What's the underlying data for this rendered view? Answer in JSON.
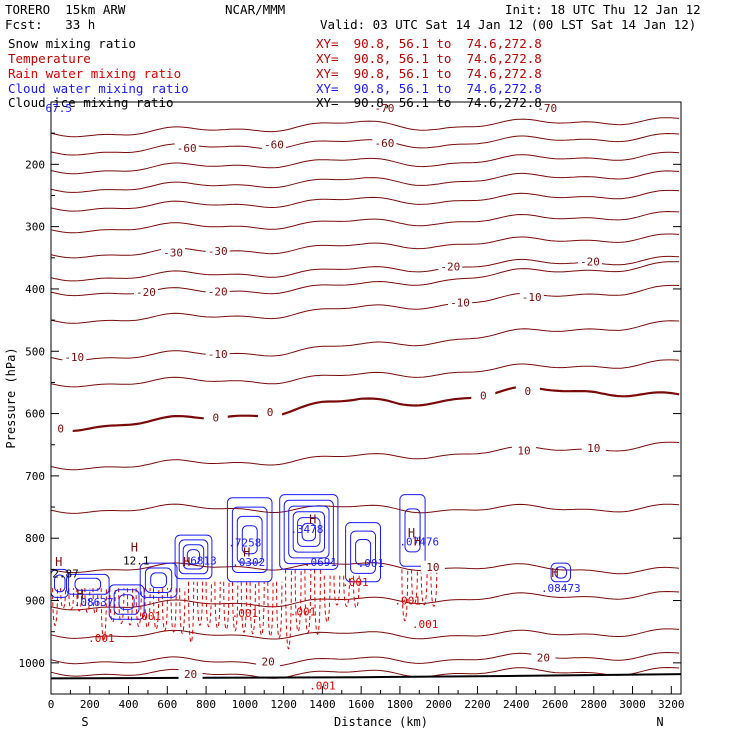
{
  "header": {
    "model": "TORERO  15km ARW",
    "center": "NCAR/MMM",
    "init": "Init: 18 UTC Thu 12 Jan 12",
    "fcst": "Fcst:   33 h",
    "valid": "Valid: 03 UTC Sat 14 Jan 12 (00 LST Sat 14 Jan 12)"
  },
  "fields": [
    {
      "name": "Snow mixing ratio",
      "xy": "XY=  90.8, 56.1 to  74.6,272.8",
      "color": "#000000",
      "xy_color": "#c00000"
    },
    {
      "name": "Temperature",
      "xy": "XY=  90.8, 56.1 to  74.6,272.8",
      "color": "#c00000",
      "xy_color": "#c00000"
    },
    {
      "name": "Rain water mixing ratio",
      "xy": "XY=  90.8, 56.1 to  74.6,272.8",
      "color": "#e00000",
      "xy_color": "#c00000"
    },
    {
      "name": "Cloud water mixing ratio",
      "xy": "XY=  90.8, 56.1 to  74.6,272.8",
      "color": "#1a1aff",
      "xy_color": "#1a1aff"
    },
    {
      "name": "Cloud ice mixing ratio",
      "xy": "XY=  90.8, 56.1 to  74.6,272.8",
      "color": "#000000",
      "xy_color": "#000000"
    }
  ],
  "colors": {
    "temperature": "#7a0a0a",
    "rain": "#e00000",
    "cloud_water": "#1a1aff",
    "terrain": "#000000"
  },
  "chart_data": {
    "type": "line",
    "xlabel": "Distance (km)",
    "ylabel": "Pressure (hPa)",
    "xlim": [
      0,
      3250
    ],
    "ylim": [
      1050,
      100
    ],
    "x_ticks": [
      0,
      200,
      400,
      600,
      800,
      1000,
      1200,
      1400,
      1600,
      1800,
      2000,
      2200,
      2400,
      2600,
      2800,
      3000,
      3200
    ],
    "y_ticks": [
      200,
      300,
      400,
      500,
      600,
      700,
      800,
      900,
      1000
    ],
    "x_end_labels": {
      "left": "S",
      "right": "N"
    },
    "grid": false,
    "temperature_isotherms": [
      {
        "x": [
          0,
          400,
          800,
          1200,
          1600,
          2000,
          2400,
          2800,
          3250
        ],
        "p": [
          150,
          150,
          145,
          140,
          135,
          140,
          135,
          130,
          130
        ]
      },
      {
        "x": [
          0,
          400,
          800,
          1200,
          1600,
          2000,
          2400,
          2800,
          3250
        ],
        "p": [
          180,
          178,
          172,
          168,
          165,
          168,
          162,
          158,
          155
        ],
        "label": "-60",
        "label_x": [
          700,
          1150,
          1720
        ]
      },
      {
        "x": [
          0,
          400,
          800,
          1200,
          1600,
          2000,
          2400,
          2800,
          3250
        ],
        "p": [
          210,
          208,
          203,
          198,
          195,
          198,
          192,
          188,
          185
        ]
      },
      {
        "x": [
          0,
          400,
          800,
          1200,
          1600,
          2000,
          2400,
          2800,
          3250
        ],
        "p": [
          240,
          238,
          234,
          230,
          226,
          228,
          222,
          218,
          215
        ]
      },
      {
        "x": [
          0,
          400,
          800,
          1200,
          1600,
          2000,
          2400,
          2800,
          3250
        ],
        "p": [
          270,
          268,
          265,
          262,
          258,
          258,
          254,
          250,
          246
        ]
      },
      {
        "x": [
          0,
          400,
          800,
          1200,
          1600,
          2000,
          2400,
          2800,
          3250
        ],
        "p": [
          305,
          302,
          300,
          297,
          293,
          292,
          288,
          284,
          280
        ]
      },
      {
        "x": [
          0,
          400,
          800,
          1200,
          1600,
          2000,
          2400,
          2800,
          3250
        ],
        "p": [
          345,
          343,
          340,
          336,
          332,
          328,
          324,
          320,
          316
        ],
        "label": "-30",
        "label_x": [
          630,
          860
        ]
      },
      {
        "x": [
          0,
          400,
          800,
          1200,
          1600,
          2000,
          2400,
          2800,
          3250
        ],
        "p": [
          382,
          380,
          377,
          374,
          370,
          365,
          360,
          356,
          352
        ],
        "label": "-20",
        "label_x": [
          2060,
          2780
        ]
      },
      {
        "x": [
          0,
          400,
          800,
          1200,
          1600,
          2000,
          2400,
          2800,
          3250
        ],
        "p": [
          405,
          405,
          405,
          400,
          395,
          385,
          375,
          368,
          360
        ],
        "label": "-20",
        "label_x": [
          490,
          860
        ]
      },
      {
        "x": [
          0,
          400,
          800,
          1200,
          1600,
          2000,
          2400,
          2800,
          3250
        ],
        "p": [
          450,
          448,
          445,
          440,
          432,
          424,
          415,
          406,
          398
        ],
        "label": "-10",
        "label_x": [
          2110,
          2480
        ]
      },
      {
        "x": [
          0,
          400,
          800,
          1200,
          1600,
          2000,
          2400,
          2800,
          3250
        ],
        "p": [
          510,
          508,
          505,
          500,
          492,
          482,
          472,
          462,
          455
        ],
        "label": "-10",
        "label_x": [
          120,
          860
        ]
      },
      {
        "x": [
          0,
          400,
          800,
          1200,
          1600,
          2000,
          2400,
          2800,
          3250
        ],
        "p": [
          552,
          550,
          548,
          545,
          540,
          534,
          528,
          522,
          518
        ]
      },
      {
        "x": [
          0,
          200,
          400,
          600,
          800,
          1000,
          1200,
          1400,
          1600,
          1800,
          2000,
          2200,
          2400,
          2600,
          2800,
          3000,
          3250
        ],
        "p": [
          625,
          620,
          615,
          612,
          608,
          602,
          595,
          585,
          580,
          583,
          578,
          572,
          565,
          562,
          563,
          567,
          573
        ],
        "label": "0",
        "label_x": [
          50,
          850,
          1130,
          2230,
          2460
        ],
        "bold": true
      },
      {
        "x": [
          0,
          400,
          800,
          1200,
          1600,
          2000,
          2400,
          2800,
          3250
        ],
        "p": [
          685,
          683,
          680,
          675,
          670,
          665,
          660,
          655,
          650
        ],
        "label": "10",
        "label_x": [
          2440,
          2800
        ]
      },
      {
        "x": [
          0,
          400,
          800,
          1200,
          1600,
          2000,
          2400,
          2800,
          3250
        ],
        "p": [
          755,
          753,
          752,
          752,
          752,
          753,
          753,
          752,
          750
        ]
      },
      {
        "x": [
          0,
          400,
          800,
          1200,
          1600,
          2000,
          2400,
          2800,
          3250
        ],
        "p": [
          850,
          848,
          846,
          844,
          844,
          846,
          848,
          850,
          852
        ],
        "label": "10",
        "label_x": [
          1970
        ]
      },
      {
        "x": [
          0,
          400,
          800,
          1200,
          1600,
          2000,
          2400,
          2800,
          3250
        ],
        "p": [
          910,
          908,
          905,
          903,
          900,
          898,
          895,
          892,
          890
        ]
      },
      {
        "x": [
          0,
          400,
          800,
          1200,
          1600,
          2000,
          2400,
          2800,
          3250
        ],
        "p": [
          955,
          955,
          955,
          955,
          955,
          955,
          955,
          952,
          950
        ]
      },
      {
        "x": [
          0,
          400,
          800,
          1200,
          1600,
          2000,
          2400,
          2800,
          3250
        ],
        "p": [
          995,
          997,
          998,
          998,
          996,
          994,
          992,
          990,
          988
        ],
        "label": "20",
        "label_x": [
          1120,
          2540
        ]
      },
      {
        "x": [
          0,
          400,
          800,
          1200,
          1600,
          2000,
          2400,
          2800,
          3250
        ],
        "p": [
          1015,
          1017,
          1018,
          1018,
          1017,
          1016,
          1015,
          1014,
          1012
        ],
        "label": "20",
        "label_x": [
          720
        ]
      }
    ],
    "terrain": {
      "x": [
        0,
        800,
        1600,
        2400,
        3250
      ],
      "p": [
        1025,
        1024,
        1023,
        1021,
        1018
      ]
    },
    "cloud_water_cells": [
      {
        "x": [
          0,
          90
        ],
        "p_top": 850,
        "p_bot": 895
      },
      {
        "x": [
          80,
          300
        ],
        "p_top": 858,
        "p_bot": 890
      },
      {
        "x": [
          300,
          480
        ],
        "p_top": 875,
        "p_bot": 930
      },
      {
        "x": [
          460,
          650
        ],
        "p_top": 840,
        "p_bot": 895
      },
      {
        "x": [
          640,
          830
        ],
        "p_top": 795,
        "p_bot": 865
      },
      {
        "x": [
          910,
          1140
        ],
        "p_top": 735,
        "p_bot": 870
      },
      {
        "x": [
          1180,
          1480
        ],
        "p_top": 730,
        "p_bot": 850
      },
      {
        "x": [
          1520,
          1700
        ],
        "p_top": 775,
        "p_bot": 870
      },
      {
        "x": [
          1800,
          1930
        ],
        "p_top": 730,
        "p_bot": 845
      },
      {
        "x": [
          2580,
          2680
        ],
        "p_top": 840,
        "p_bot": 870
      }
    ],
    "rain_columns": [
      {
        "x": [
          0,
          250
        ],
        "p_top": 880,
        "p_bot": 960
      },
      {
        "x": [
          250,
          700
        ],
        "p_top": 880,
        "p_bot": 990
      },
      {
        "x": [
          700,
          1200
        ],
        "p_top": 870,
        "p_bot": 1000
      },
      {
        "x": [
          1200,
          1400
        ],
        "p_top": 850,
        "p_bot": 1020
      },
      {
        "x": [
          1400,
          1600
        ],
        "p_top": 860,
        "p_bot": 960
      },
      {
        "x": [
          1800,
          2000
        ],
        "p_top": 850,
        "p_bot": 960
      }
    ],
    "contour_labels": [
      {
        "text": "67.5",
        "x": 40,
        "p": 110,
        "color": "#1a1aff"
      },
      {
        "text": "-70",
        "x": 1720,
        "p": 110,
        "color": "#7a0a0a"
      },
      {
        "text": "-70",
        "x": 2560,
        "p": 110,
        "color": "#7a0a0a"
      },
      {
        "text": ".001",
        "x": 500,
        "p": 925,
        "color": "#e00000"
      },
      {
        "text": ".001",
        "x": 1000,
        "p": 920,
        "color": "#e00000"
      },
      {
        "text": ".001",
        "x": 1300,
        "p": 918,
        "color": "#e00000"
      },
      {
        "text": ".001",
        "x": 1570,
        "p": 870,
        "color": "#e00000"
      },
      {
        "text": ".001",
        "x": 1840,
        "p": 900,
        "color": "#e00000"
      },
      {
        "text": ".001",
        "x": 1930,
        "p": 938,
        "color": "#e00000"
      },
      {
        "text": ".001",
        "x": 260,
        "p": 960,
        "color": "#e00000"
      },
      {
        "text": ".001",
        "x": 1400,
        "p": 1036,
        "color": "#e00000"
      },
      {
        "text": ".001",
        "x": 1650,
        "p": 840,
        "color": "#1a1aff"
      },
      {
        "text": ".7258",
        "x": 1000,
        "p": 807,
        "color": "#1a1aff"
      },
      {
        "text": ".6813",
        "x": 770,
        "p": 836,
        "color": "#1a1aff"
      },
      {
        "text": ".3478",
        "x": 1320,
        "p": 785,
        "color": "#1a1aff"
      },
      {
        "text": ".0302",
        "x": 1020,
        "p": 838,
        "color": "#1a1aff"
      },
      {
        "text": ".0691",
        "x": 1390,
        "p": 838,
        "color": "#1a1aff"
      },
      {
        "text": ".07476",
        "x": 1900,
        "p": 805,
        "color": "#1a1aff"
      },
      {
        "text": ".08473",
        "x": 2630,
        "p": 880,
        "color": "#1a1aff"
      },
      {
        "text": ".08637",
        "x": 220,
        "p": 902,
        "color": "#1a1aff"
      },
      {
        "text": "2.87",
        "x": 75,
        "p": 857,
        "color": "#000000"
      },
      {
        "text": "12.1",
        "x": 440,
        "p": 836,
        "color": "#000000"
      }
    ],
    "high_markers": [
      {
        "text": "H",
        "x": 40,
        "p": 838,
        "color": "#7a0a0a"
      },
      {
        "text": "H",
        "x": 430,
        "p": 815,
        "color": "#7a0a0a"
      },
      {
        "text": "H",
        "x": 700,
        "p": 838,
        "color": "#7a0a0a"
      },
      {
        "text": "H",
        "x": 150,
        "p": 890,
        "color": "#7a0a0a"
      },
      {
        "text": "H",
        "x": 1010,
        "p": 823,
        "color": "#7a0a0a"
      },
      {
        "text": "H",
        "x": 1350,
        "p": 770,
        "color": "#7a0a0a"
      },
      {
        "text": "H",
        "x": 1860,
        "p": 792,
        "color": "#7a0a0a"
      },
      {
        "text": "H",
        "x": 1890,
        "p": 805,
        "color": "#7a0a0a"
      },
      {
        "text": "H",
        "x": 2600,
        "p": 856,
        "color": "#7a0a0a"
      }
    ]
  }
}
